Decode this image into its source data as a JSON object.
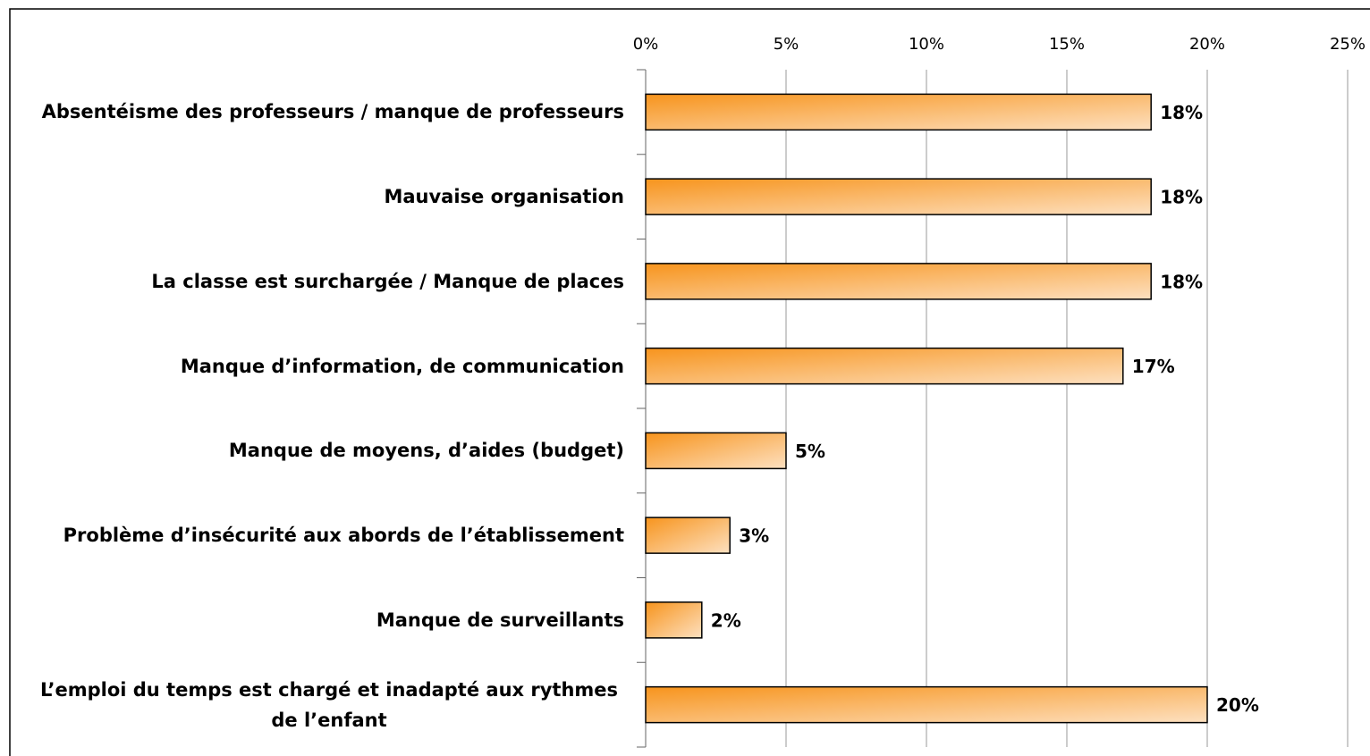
{
  "chart_data": {
    "type": "bar",
    "orientation": "horizontal",
    "categories": [
      "Absentéisme des professeurs / manque de professeurs",
      "Mauvaise organisation",
      "La classe est surchargée / Manque de places",
      "Manque d’information, de communication",
      "Manque de moyens, d’aides (budget)",
      "Problème d’insécurité aux abords de l’établissement",
      "Manque de surveillants",
      "L’emploi du temps est chargé et inadapté aux rythmes de l’enfant"
    ],
    "values": [
      18,
      18,
      18,
      17,
      5,
      3,
      2,
      20
    ],
    "value_labels": [
      "18%",
      "18%",
      "18%",
      "17%",
      "5%",
      "3%",
      "2%",
      "20%"
    ],
    "color": "#f7941d",
    "xlim": [
      0,
      25
    ],
    "xticks": [
      {
        "value": 0,
        "label": "0%"
      },
      {
        "value": 5,
        "label": "5%"
      },
      {
        "value": 10,
        "label": "10%"
      },
      {
        "value": 15,
        "label": "15%"
      },
      {
        "value": 20,
        "label": "20%"
      },
      {
        "value": 25,
        "label": "25%"
      }
    ],
    "grid": true
  }
}
